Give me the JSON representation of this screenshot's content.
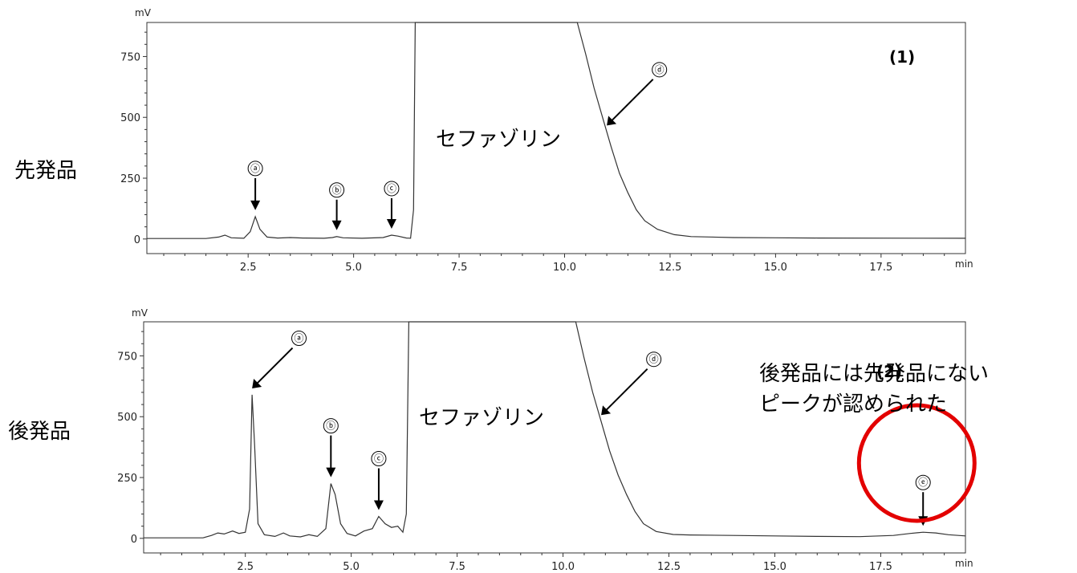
{
  "chart_data": [
    {
      "type": "line",
      "panel_label": "(1)",
      "row_label": "先発品",
      "ylabel": "mV",
      "xlabel": "min",
      "xlim": [
        0.1,
        19.5
      ],
      "ylim": [
        -60,
        890
      ],
      "x_ticks": [
        "2.5",
        "5.0",
        "7.5",
        "10.0",
        "12.5",
        "15.0",
        "17.5"
      ],
      "y_ticks": [
        "0",
        "250",
        "500",
        "750"
      ],
      "series": [
        {
          "points": [
            [
              0.1,
              2
            ],
            [
              1.5,
              2
            ],
            [
              1.8,
              8
            ],
            [
              1.95,
              16
            ],
            [
              2.1,
              5
            ],
            [
              2.4,
              3
            ],
            [
              2.55,
              30
            ],
            [
              2.67,
              92
            ],
            [
              2.78,
              40
            ],
            [
              2.95,
              8
            ],
            [
              3.2,
              4
            ],
            [
              3.5,
              6
            ],
            [
              3.8,
              4
            ],
            [
              4.3,
              3
            ],
            [
              4.5,
              6
            ],
            [
              4.6,
              10
            ],
            [
              4.75,
              5
            ],
            [
              5.2,
              3
            ],
            [
              5.7,
              6
            ],
            [
              5.9,
              16
            ],
            [
              6.05,
              12
            ],
            [
              6.25,
              4
            ],
            [
              6.35,
              3
            ],
            [
              6.42,
              120
            ],
            [
              6.46,
              890
            ],
            [
              6.52,
              890
            ],
            [
              10.3,
              890
            ],
            [
              10.5,
              760
            ],
            [
              10.7,
              620
            ],
            [
              10.9,
              500
            ],
            [
              11.1,
              380
            ],
            [
              11.3,
              270
            ],
            [
              11.5,
              190
            ],
            [
              11.7,
              120
            ],
            [
              11.9,
              75
            ],
            [
              12.2,
              40
            ],
            [
              12.6,
              18
            ],
            [
              13.0,
              10
            ],
            [
              14.0,
              6
            ],
            [
              15.0,
              5
            ],
            [
              16.0,
              4
            ],
            [
              19.5,
              3
            ]
          ]
        }
      ],
      "peaks": [
        {
          "label": "ⓐ",
          "x": 2.67,
          "y": 92
        },
        {
          "label": "ⓑ",
          "x": 4.6,
          "y": 10
        },
        {
          "label": "ⓒ",
          "x": 5.9,
          "y": 16
        },
        {
          "label": "ⓓ",
          "x": 11.0,
          "y": 440
        }
      ],
      "annotation": "セファゾリン"
    },
    {
      "type": "line",
      "panel_label": "(2)",
      "row_label": "後発品",
      "ylabel": "mV",
      "xlabel": "min",
      "xlim": [
        0.1,
        19.5
      ],
      "ylim": [
        -60,
        890
      ],
      "x_ticks": [
        "2.5",
        "5.0",
        "7.5",
        "10.0",
        "12.5",
        "15.0",
        "17.5"
      ],
      "y_ticks": [
        "0",
        "250",
        "500",
        "750"
      ],
      "series": [
        {
          "points": [
            [
              0.1,
              2
            ],
            [
              1.5,
              2
            ],
            [
              1.7,
              12
            ],
            [
              1.85,
              22
            ],
            [
              2.0,
              18
            ],
            [
              2.2,
              30
            ],
            [
              2.35,
              20
            ],
            [
              2.5,
              25
            ],
            [
              2.6,
              120
            ],
            [
              2.66,
              590
            ],
            [
              2.72,
              380
            ],
            [
              2.8,
              60
            ],
            [
              2.95,
              15
            ],
            [
              3.2,
              8
            ],
            [
              3.4,
              22
            ],
            [
              3.55,
              10
            ],
            [
              3.8,
              6
            ],
            [
              4.0,
              15
            ],
            [
              4.2,
              8
            ],
            [
              4.4,
              40
            ],
            [
              4.52,
              225
            ],
            [
              4.62,
              180
            ],
            [
              4.75,
              60
            ],
            [
              4.9,
              20
            ],
            [
              5.1,
              10
            ],
            [
              5.3,
              30
            ],
            [
              5.5,
              40
            ],
            [
              5.65,
              90
            ],
            [
              5.8,
              60
            ],
            [
              5.95,
              45
            ],
            [
              6.1,
              50
            ],
            [
              6.22,
              25
            ],
            [
              6.3,
              100
            ],
            [
              6.36,
              890
            ],
            [
              6.42,
              890
            ],
            [
              10.3,
              890
            ],
            [
              10.5,
              740
            ],
            [
              10.7,
              600
            ],
            [
              10.9,
              480
            ],
            [
              11.1,
              360
            ],
            [
              11.3,
              260
            ],
            [
              11.5,
              180
            ],
            [
              11.7,
              110
            ],
            [
              11.9,
              60
            ],
            [
              12.2,
              28
            ],
            [
              12.6,
              16
            ],
            [
              13.0,
              14
            ],
            [
              14.0,
              12
            ],
            [
              15.0,
              10
            ],
            [
              16.0,
              8
            ],
            [
              17.0,
              7
            ],
            [
              17.8,
              12
            ],
            [
              18.2,
              20
            ],
            [
              18.5,
              25
            ],
            [
              18.8,
              22
            ],
            [
              19.1,
              15
            ],
            [
              19.5,
              10
            ]
          ]
        }
      ],
      "peaks": [
        {
          "label": "ⓐ",
          "x": 2.66,
          "y": 590
        },
        {
          "label": "ⓑ",
          "x": 4.52,
          "y": 225
        },
        {
          "label": "ⓒ",
          "x": 5.65,
          "y": 90
        },
        {
          "label": "ⓓ",
          "x": 10.9,
          "y": 480
        },
        {
          "label": "ⓔ",
          "x": 18.5,
          "y": 25
        }
      ],
      "annotation": "セファゾリン",
      "note_lines": [
        "後発品には先発品にない",
        "ピークが認められた"
      ],
      "highlight_color": "#e30000"
    }
  ]
}
